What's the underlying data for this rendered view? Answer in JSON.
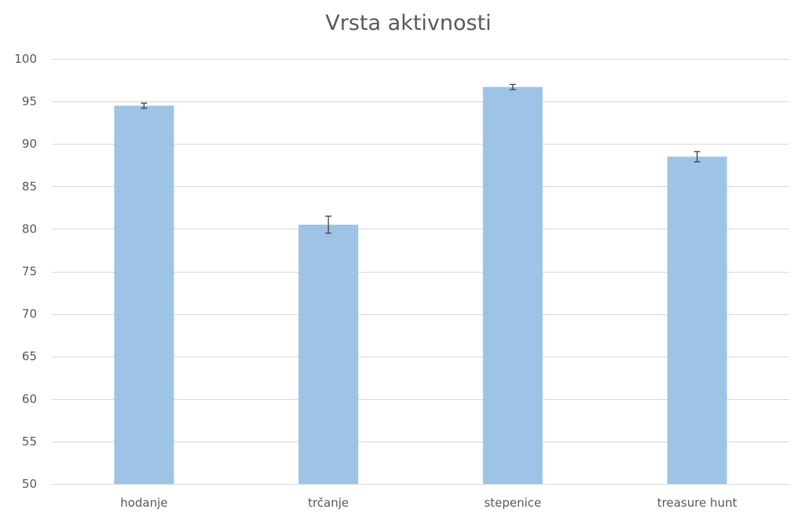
{
  "chart_data": {
    "type": "bar",
    "title": "Vrsta aktivnosti",
    "xlabel": "",
    "ylabel": "",
    "categories": [
      "hodanje",
      "trčanje",
      "stepenice",
      "treasure hunt"
    ],
    "series": [
      {
        "values": [
          94.5,
          80.5,
          96.7,
          88.5
        ],
        "error": [
          0.3,
          1.0,
          0.3,
          0.6
        ],
        "color": "#9dc3e6"
      }
    ],
    "ylim": [
      50,
      100
    ],
    "yticks": [
      50,
      55,
      60,
      65,
      70,
      75,
      80,
      85,
      90,
      95,
      100
    ],
    "grid": true,
    "legend": "none"
  }
}
